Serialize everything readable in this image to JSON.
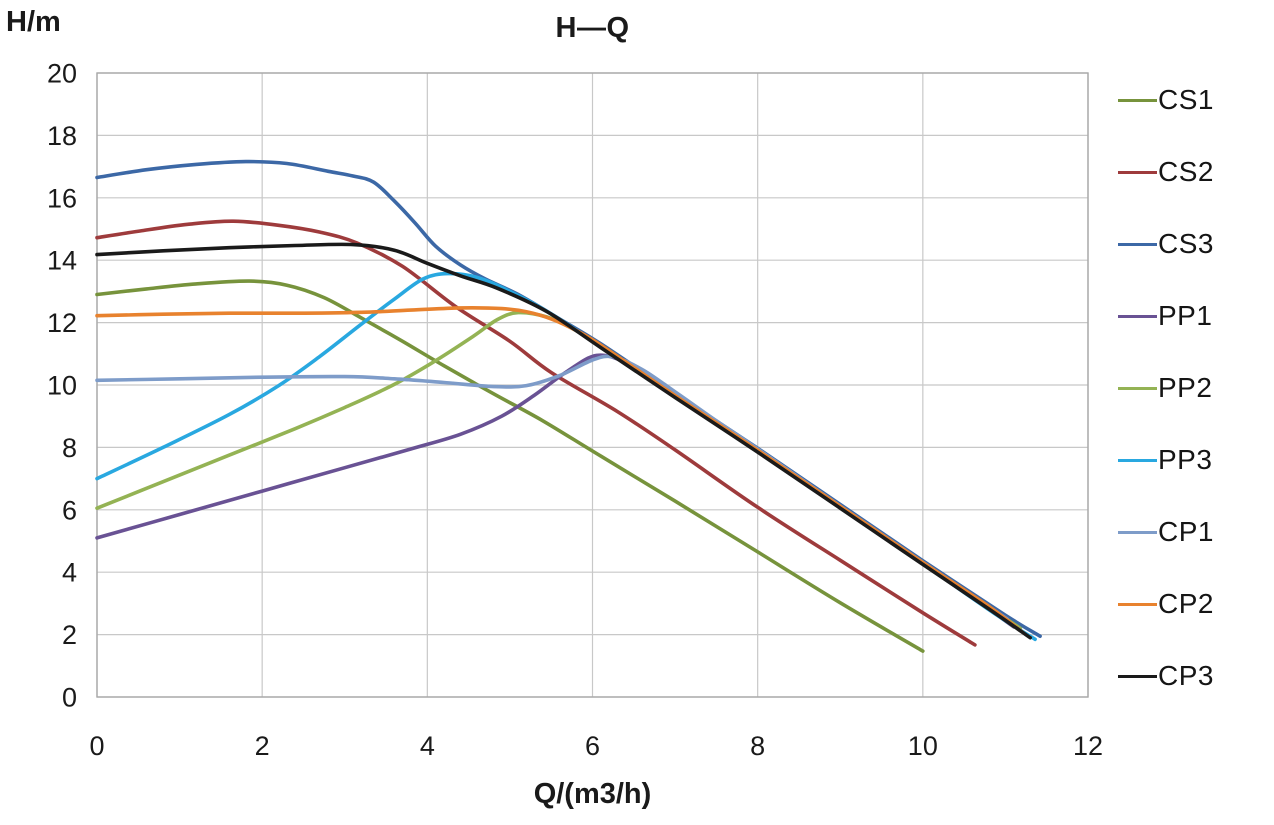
{
  "chart_data": {
    "type": "line",
    "title": "H—Q",
    "xlabel": "Q/(m3/h)",
    "ylabel": "H/m",
    "xlim": [
      0,
      12
    ],
    "ylim": [
      0,
      20
    ],
    "x_ticks": [
      0,
      2,
      4,
      6,
      8,
      10,
      12
    ],
    "y_ticks": [
      0,
      2,
      4,
      6,
      8,
      10,
      12,
      14,
      16,
      18,
      20
    ],
    "grid": true,
    "legend_position": "right",
    "grid_color": "#c8c8c8",
    "border_color": "#a8a8a8",
    "series": [
      {
        "name": "CS1",
        "color": "#77933C",
        "points": [
          [
            0,
            12.9
          ],
          [
            0.6,
            13.08
          ],
          [
            1.2,
            13.24
          ],
          [
            1.85,
            13.33
          ],
          [
            2.3,
            13.2
          ],
          [
            2.75,
            12.8
          ],
          [
            3.2,
            12.15
          ],
          [
            3.7,
            11.4
          ],
          [
            4.2,
            10.62
          ],
          [
            4.8,
            9.72
          ],
          [
            5.4,
            8.85
          ],
          [
            6.1,
            7.72
          ],
          [
            7,
            6.28
          ],
          [
            8,
            4.65
          ],
          [
            9,
            3.02
          ],
          [
            10,
            1.47
          ]
        ]
      },
      {
        "name": "CS2",
        "color": "#9E3B3C",
        "points": [
          [
            0,
            14.72
          ],
          [
            0.55,
            14.95
          ],
          [
            1.1,
            15.15
          ],
          [
            1.65,
            15.25
          ],
          [
            2.2,
            15.12
          ],
          [
            2.7,
            14.9
          ],
          [
            3.15,
            14.55
          ],
          [
            3.7,
            13.8
          ],
          [
            4.35,
            12.5
          ],
          [
            5,
            11.4
          ],
          [
            5.5,
            10.4
          ],
          [
            6.3,
            9.15
          ],
          [
            7,
            7.92
          ],
          [
            8,
            6.08
          ],
          [
            9,
            4.38
          ],
          [
            10,
            2.7
          ],
          [
            10.63,
            1.67
          ]
        ]
      },
      {
        "name": "CS3",
        "color": "#3C68A6",
        "points": [
          [
            0,
            16.65
          ],
          [
            0.6,
            16.9
          ],
          [
            1.2,
            17.07
          ],
          [
            1.8,
            17.16
          ],
          [
            2.3,
            17.1
          ],
          [
            2.8,
            16.85
          ],
          [
            3.1,
            16.7
          ],
          [
            3.35,
            16.5
          ],
          [
            3.6,
            15.9
          ],
          [
            3.85,
            15.2
          ],
          [
            4.1,
            14.45
          ],
          [
            4.4,
            13.85
          ],
          [
            4.7,
            13.4
          ],
          [
            5.1,
            12.9
          ],
          [
            5.6,
            12.12
          ],
          [
            6.1,
            11.32
          ],
          [
            7,
            9.72
          ],
          [
            8,
            7.97
          ],
          [
            9,
            6.17
          ],
          [
            10,
            4.37
          ],
          [
            11,
            2.62
          ],
          [
            11.42,
            1.95
          ]
        ]
      },
      {
        "name": "PP1",
        "color": "#695294",
        "points": [
          [
            0,
            5.1
          ],
          [
            1,
            5.85
          ],
          [
            2,
            6.6
          ],
          [
            3,
            7.35
          ],
          [
            3.8,
            7.95
          ],
          [
            4.4,
            8.42
          ],
          [
            4.9,
            9.0
          ],
          [
            5.3,
            9.68
          ],
          [
            5.7,
            10.45
          ],
          [
            6.05,
            10.95
          ],
          [
            6.4,
            10.72
          ],
          [
            6.8,
            10.05
          ],
          [
            7.2,
            9.3
          ],
          [
            8,
            7.88
          ],
          [
            9,
            6.08
          ],
          [
            10,
            4.28
          ],
          [
            10.7,
            3.0
          ],
          [
            11.1,
            2.25
          ]
        ]
      },
      {
        "name": "PP2",
        "color": "#94B354",
        "points": [
          [
            0,
            6.05
          ],
          [
            0.8,
            6.9
          ],
          [
            1.6,
            7.75
          ],
          [
            2.4,
            8.6
          ],
          [
            3,
            9.28
          ],
          [
            3.6,
            10.02
          ],
          [
            4.1,
            10.78
          ],
          [
            4.55,
            11.55
          ],
          [
            4.85,
            12.1
          ],
          [
            5.1,
            12.32
          ],
          [
            5.45,
            12.18
          ],
          [
            5.75,
            11.82
          ],
          [
            6.1,
            11.25
          ],
          [
            7,
            9.64
          ],
          [
            8,
            7.89
          ],
          [
            9,
            6.09
          ],
          [
            10,
            4.29
          ],
          [
            10.8,
            2.88
          ],
          [
            11.18,
            2.2
          ]
        ]
      },
      {
        "name": "PP3",
        "color": "#29A8E0",
        "points": [
          [
            0,
            7.0
          ],
          [
            0.8,
            8.0
          ],
          [
            1.6,
            9.05
          ],
          [
            2.2,
            9.98
          ],
          [
            2.7,
            10.92
          ],
          [
            3.2,
            11.95
          ],
          [
            3.6,
            12.75
          ],
          [
            3.95,
            13.4
          ],
          [
            4.25,
            13.57
          ],
          [
            4.6,
            13.45
          ],
          [
            5,
            13.0
          ],
          [
            5.5,
            12.28
          ],
          [
            6.1,
            11.22
          ],
          [
            7,
            9.62
          ],
          [
            8,
            7.87
          ],
          [
            9,
            6.07
          ],
          [
            10,
            4.27
          ],
          [
            10.9,
            2.62
          ],
          [
            11.36,
            1.85
          ]
        ]
      },
      {
        "name": "CP1",
        "color": "#7E9CC9",
        "points": [
          [
            0,
            10.15
          ],
          [
            1,
            10.2
          ],
          [
            2,
            10.25
          ],
          [
            3,
            10.27
          ],
          [
            3.6,
            10.2
          ],
          [
            4.2,
            10.08
          ],
          [
            4.8,
            9.95
          ],
          [
            5.2,
            9.98
          ],
          [
            5.6,
            10.3
          ],
          [
            6,
            10.8
          ],
          [
            6.25,
            10.9
          ],
          [
            6.6,
            10.5
          ],
          [
            7,
            9.78
          ],
          [
            7.5,
            8.85
          ],
          [
            8,
            7.95
          ],
          [
            9,
            6.12
          ],
          [
            10,
            4.32
          ],
          [
            10.6,
            3.25
          ],
          [
            11.02,
            2.5
          ]
        ]
      },
      {
        "name": "CP2",
        "color": "#E8822E",
        "points": [
          [
            0,
            12.22
          ],
          [
            0.8,
            12.27
          ],
          [
            1.6,
            12.3
          ],
          [
            2.4,
            12.3
          ],
          [
            3.2,
            12.33
          ],
          [
            3.8,
            12.4
          ],
          [
            4.4,
            12.47
          ],
          [
            4.9,
            12.45
          ],
          [
            5.2,
            12.35
          ],
          [
            5.5,
            12.12
          ],
          [
            5.8,
            11.75
          ],
          [
            6.1,
            11.28
          ],
          [
            7,
            9.66
          ],
          [
            8,
            7.91
          ],
          [
            9,
            6.11
          ],
          [
            10,
            4.31
          ],
          [
            10.8,
            2.9
          ],
          [
            11.22,
            2.05
          ]
        ]
      },
      {
        "name": "CP3",
        "color": "#1A1A1A",
        "points": [
          [
            0,
            14.18
          ],
          [
            0.8,
            14.3
          ],
          [
            1.6,
            14.4
          ],
          [
            2.4,
            14.47
          ],
          [
            3.1,
            14.5
          ],
          [
            3.6,
            14.32
          ],
          [
            4.0,
            13.9
          ],
          [
            4.4,
            13.5
          ],
          [
            4.85,
            13.1
          ],
          [
            5.45,
            12.35
          ],
          [
            6.1,
            11.2
          ],
          [
            7,
            9.6
          ],
          [
            8,
            7.85
          ],
          [
            9,
            6.05
          ],
          [
            10,
            4.25
          ],
          [
            10.8,
            2.82
          ],
          [
            11.3,
            1.9
          ]
        ]
      }
    ]
  }
}
